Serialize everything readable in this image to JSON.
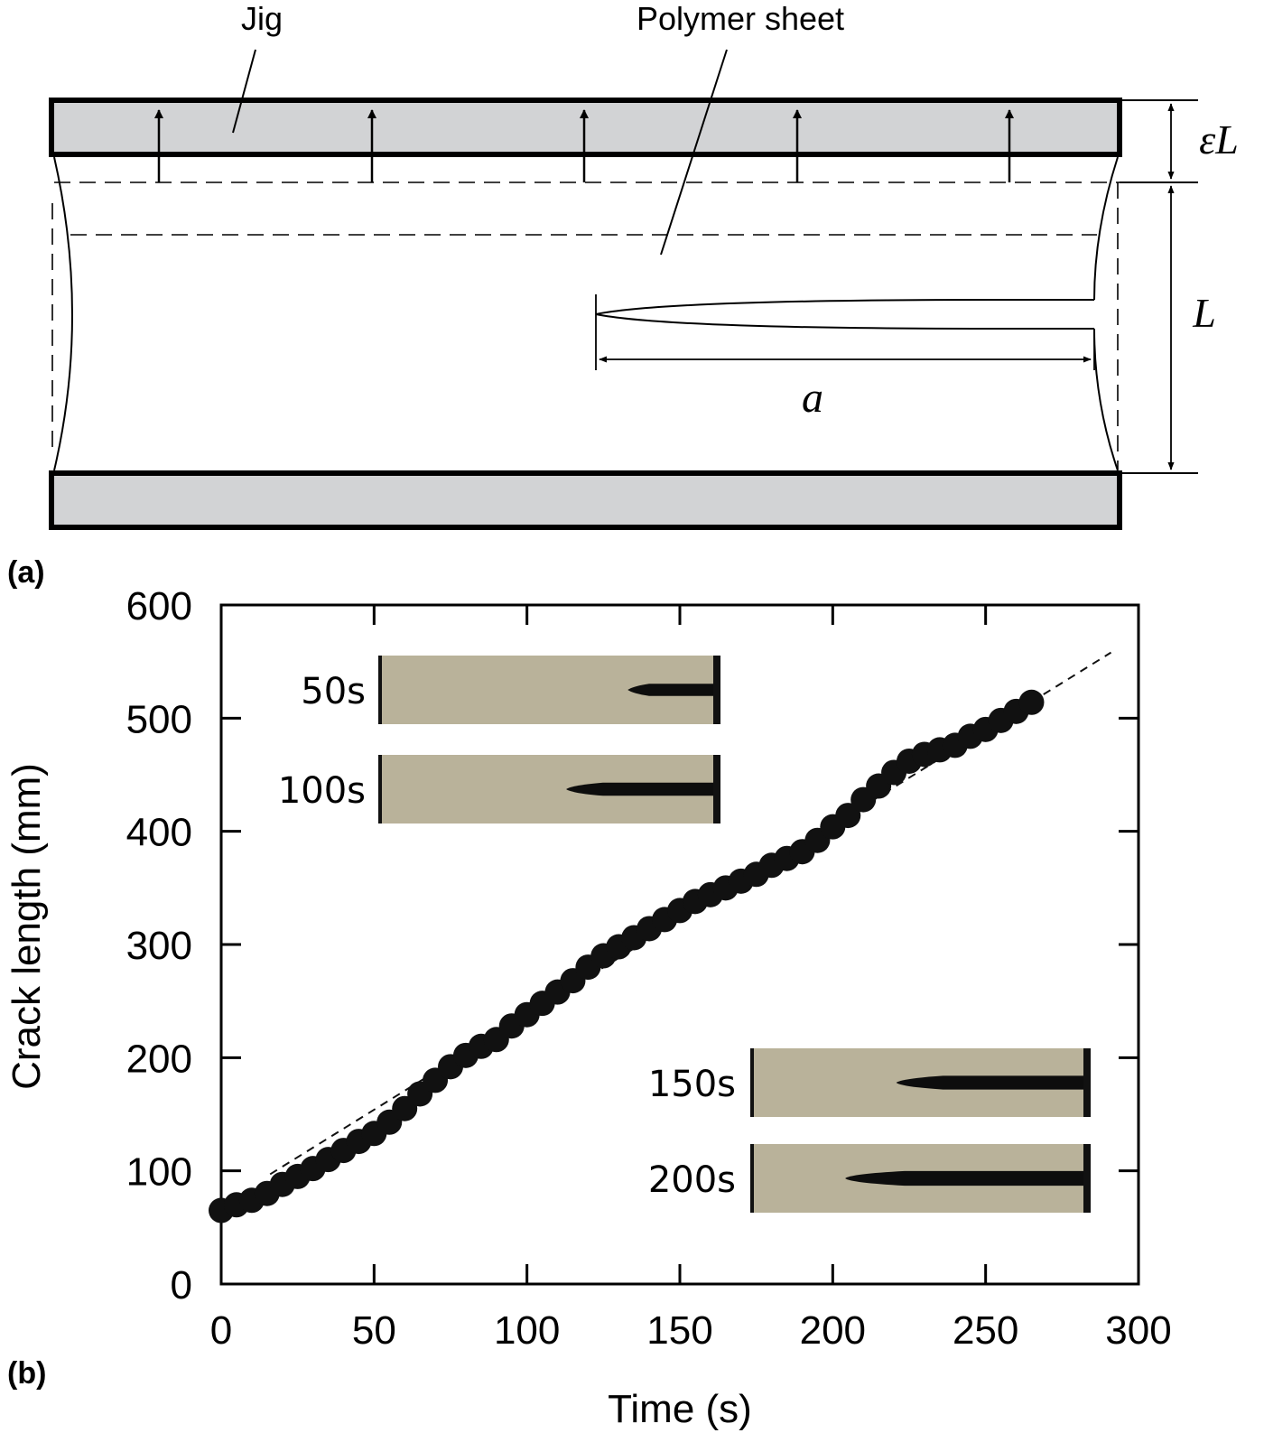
{
  "diagram": {
    "panel_label": "(a)",
    "labels": {
      "jig": "Jig",
      "polymer_sheet": "Polymer sheet",
      "strain_displacement": "εL",
      "length": "L",
      "crack_length": "a"
    }
  },
  "chart_data": {
    "type": "scatter",
    "panel_label": "(b)",
    "title": "",
    "xlabel": "Time (s)",
    "ylabel": "Crack length (mm)",
    "xlim": [
      0,
      300
    ],
    "ylim": [
      0,
      600
    ],
    "xticks": [
      0,
      50,
      100,
      150,
      200,
      250,
      300
    ],
    "yticks": [
      0,
      100,
      200,
      300,
      400,
      500,
      600
    ],
    "grid": false,
    "legend": "none",
    "series": [
      {
        "x": [
          0,
          5,
          10,
          15,
          20,
          25,
          30,
          35,
          40,
          45,
          50,
          55,
          60,
          65,
          70,
          75,
          80,
          85,
          90,
          95,
          100,
          105,
          110,
          115,
          120,
          125,
          130,
          135,
          140,
          145,
          150,
          155,
          160,
          165,
          170,
          175,
          180,
          185,
          190,
          195,
          200,
          205,
          210,
          215,
          220,
          225,
          230,
          235,
          240,
          245,
          250,
          255,
          260,
          265
        ],
        "y": [
          65,
          70,
          74,
          80,
          88,
          95,
          102,
          110,
          118,
          126,
          133,
          143,
          155,
          168,
          180,
          192,
          202,
          210,
          216,
          228,
          238,
          248,
          258,
          268,
          280,
          290,
          298,
          306,
          314,
          322,
          330,
          338,
          344,
          350,
          356,
          362,
          370,
          376,
          382,
          392,
          404,
          414,
          428,
          440,
          452,
          462,
          468,
          472,
          476,
          484,
          490,
          498,
          506,
          514
        ],
        "color": "#111111"
      }
    ],
    "fit_line": {
      "x": [
        16,
        291
      ],
      "y": [
        97,
        558
      ],
      "style": "dashed",
      "color": "#111111"
    },
    "insets": [
      {
        "label": "50s",
        "crack_fraction": 0.25
      },
      {
        "label": "100s",
        "crack_fraction": 0.43
      },
      {
        "label": "150s",
        "crack_fraction": 0.55
      },
      {
        "label": "200s",
        "crack_fraction": 0.7
      }
    ],
    "inset_color": "#b9b29a"
  }
}
